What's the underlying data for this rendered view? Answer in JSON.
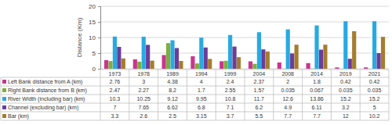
{
  "chart_data": {
    "type": "bar",
    "y_label": "Distance (Km)",
    "categories": [
      "1973",
      "1978",
      "1989",
      "1994",
      "1999",
      "2004",
      "2008",
      "2014",
      "2019",
      "2021"
    ],
    "series": [
      {
        "name": "Left Bank distance from A (km)",
        "color": "#c9358f",
        "values": [
          2.76,
          3,
          4.38,
          4,
          2.4,
          2.37,
          2,
          1.8,
          0.42,
          0.42
        ]
      },
      {
        "name": "Right Bank distance from B (km)",
        "color": "#7fae3c",
        "values": [
          2.47,
          2.27,
          8.2,
          1.7,
          2.55,
          1.57,
          0.035,
          0.067,
          0.035,
          0.035
        ]
      },
      {
        "name": "River Width (including bar) (km)",
        "color": "#27aae1",
        "values": [
          10.3,
          10.25,
          9.12,
          9.95,
          10.8,
          11.7,
          12.6,
          13.86,
          15.2,
          15.2
        ]
      },
      {
        "name": "Channel (excluding bar) (km)",
        "color": "#6b3d98",
        "values": [
          7,
          7.65,
          6.62,
          6.8,
          7.1,
          6.2,
          4.9,
          6.11,
          3.2,
          5
        ]
      },
      {
        "name": "Bar (km)",
        "color": "#a67c2e",
        "values": [
          3.3,
          2.6,
          2.5,
          3.15,
          3.7,
          5.5,
          7.7,
          7.7,
          12,
          10.2
        ]
      }
    ],
    "ylim": [
      0,
      20
    ],
    "yticks": [
      0,
      5,
      10,
      15,
      20
    ],
    "grid": true
  }
}
